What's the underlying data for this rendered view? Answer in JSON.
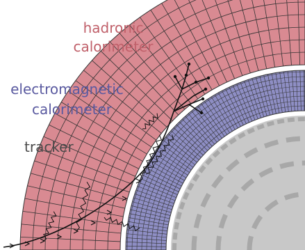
{
  "labels": {
    "hadronic_1": "hadronic",
    "hadronic_2": "calorimeter",
    "em_1": "electromagnetic",
    "em_2": "calorimeter",
    "tracker": "tracker"
  },
  "colors": {
    "hadronic_fill": "#d98a92",
    "hadronic_text": "#c0606a",
    "em_fill": "#8e8ec4",
    "em_text": "#5a5aa0",
    "tracker_fill": "#c8c8c8",
    "tracker_dash": "#a8a8a8",
    "grid_line": "#333333",
    "track": "#111111"
  }
}
